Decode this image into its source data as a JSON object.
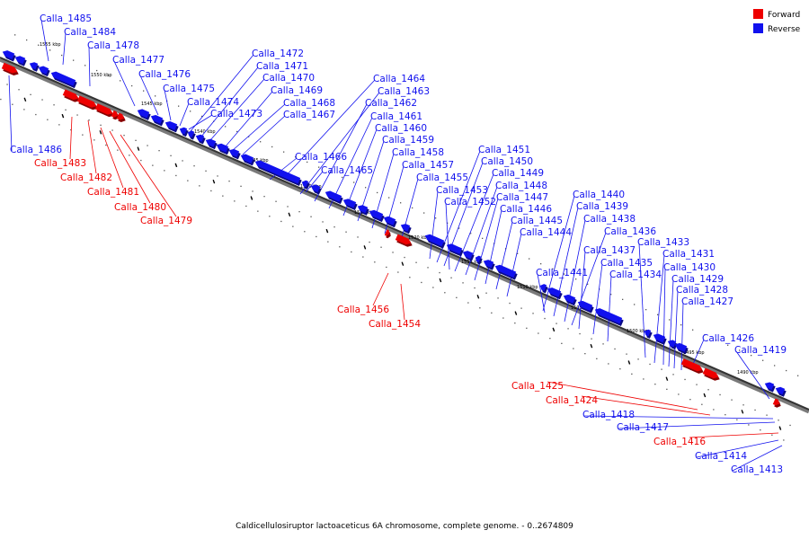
{
  "legend": {
    "forward_label": "Forward",
    "reverse_label": "Reverse",
    "forward_color": "#ee0000",
    "reverse_color": "#1111ee"
  },
  "footer": {
    "caption": "Caldicellulosiruptor lactoaceticus 6A chromosome, complete genome. - 0..2674809"
  },
  "tick_labels": [
    "1555 kbp",
    "1550 kbp",
    "1545 kbp",
    "1540 kbp",
    "1535 kbp",
    "1530 kbp",
    "1525 kbp",
    "1520 kbp",
    "1515 kbp",
    "1510 kbp",
    "1505 kbp",
    "1500 kbp",
    "1495 kbp",
    "1490 kbp"
  ],
  "genes_reverse": [
    "Calla_1485",
    "Calla_1484",
    "Calla_1478",
    "Calla_1477",
    "Calla_1476",
    "Calla_1475",
    "Calla_1474",
    "Calla_1473",
    "Calla_1472",
    "Calla_1471",
    "Calla_1470",
    "Calla_1469",
    "Calla_1468",
    "Calla_1467",
    "Calla_1466",
    "Calla_1465",
    "Calla_1464",
    "Calla_1463",
    "Calla_1462",
    "Calla_1461",
    "Calla_1460",
    "Calla_1459",
    "Calla_1458",
    "Calla_1457",
    "Calla_1455",
    "Calla_1453",
    "Calla_1452",
    "Calla_1451",
    "Calla_1450",
    "Calla_1449",
    "Calla_1448",
    "Calla_1447",
    "Calla_1446",
    "Calla_1445",
    "Calla_1444",
    "Calla_1441",
    "Calla_1440",
    "Calla_1439",
    "Calla_1438",
    "Calla_1437",
    "Calla_1436",
    "Calla_1435",
    "Calla_1434",
    "Calla_1433",
    "Calla_1431",
    "Calla_1430",
    "Calla_1429",
    "Calla_1428",
    "Calla_1427",
    "Calla_1426",
    "Calla_1419",
    "Calla_1418",
    "Calla_1417",
    "Calla_1414",
    "Calla_1413",
    "Calla_1486"
  ],
  "genes_forward": [
    "Calla_1483",
    "Calla_1482",
    "Calla_1481",
    "Calla_1480",
    "Calla_1479",
    "Calla_1456",
    "Calla_1454",
    "Calla_1425",
    "Calla_1424",
    "Calla_1416"
  ]
}
